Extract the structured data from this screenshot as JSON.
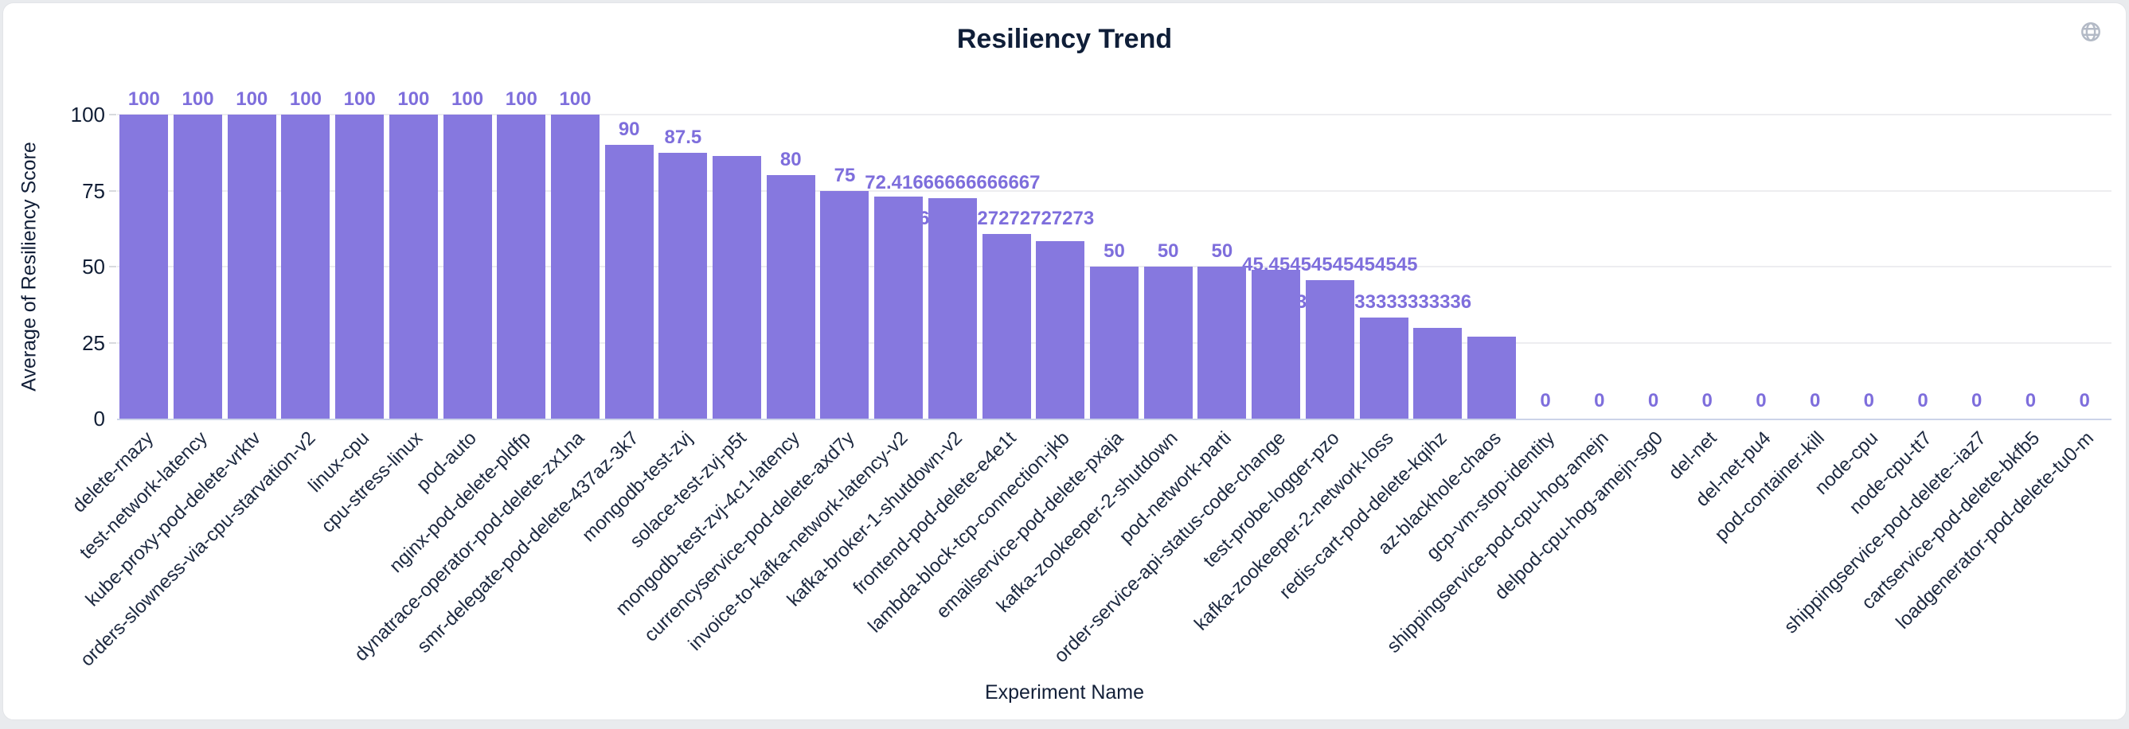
{
  "header": {
    "title": "Resiliency Trend"
  },
  "colors": {
    "bar": "#8678df",
    "value_label": "#7e6edc",
    "axis_text": "#111e35",
    "category_text": "#1d2940",
    "gridline": "#ededf0",
    "axis_line": "#ccd3e8",
    "page_background": "#e9ebee",
    "card_background": "#ffffff",
    "globe_icon": "#b3bac6"
  },
  "icons": {
    "globe": "globe-icon"
  },
  "chart_data": {
    "type": "bar",
    "title": "Resiliency Trend",
    "xlabel": "Experiment Name",
    "ylabel": "Average of Resiliency Score",
    "ylim": [
      0,
      100
    ],
    "ytick_labels": [
      "0",
      "25",
      "50",
      "75",
      "100"
    ],
    "grid": true,
    "legend": "none",
    "categories": [
      "delete-rnazy",
      "test-network-latency",
      "kube-proxy-pod-delete-vrktv",
      "orders-slowness-via-cpu-starvation-v2",
      "linux-cpu",
      "cpu-stress-linux",
      "pod-auto",
      "nginx-pod-delete-pldfp",
      "dynatrace-operator-pod-delete-zx1na",
      "smr-delegate-pod-delete-437az-3k7",
      "mongodb-test-zvj",
      "solace-test-zvj-p5t",
      "mongodb-test-zvj-4c1-latency",
      "currencyservice-pod-delete-axd7y",
      "invoice-to-kafka-network-latency-v2",
      "kafka-broker-1-shutdown-v2",
      "frontend-pod-delete-e4e1t",
      "lambda-block-tcp-connection-jkb",
      "emailservice-pod-delete-pxaja",
      "kafka-zookeeper-2-shutdown",
      "pod-network-parti",
      "order-service-api-status-code-change",
      "test-probe-logger-pzo",
      "kafka-zookeeper-2-network-loss",
      "redis-cart-pod-delete-kqihz",
      "az-blackhole-chaos",
      "gcp-vm-stop-identity",
      "shippingservice-pod-cpu-hog-amejn",
      "delpod-cpu-hog-amejn-sg0",
      "del-net",
      "del-net-pu4",
      "pod-container-kill",
      "node-cpu",
      "node-cpu-tt7",
      "shippingservice-pod-delete--iaz7",
      "cartservice-pod-delete-bkfb5",
      "loadgenerator-pod-delete-tu0-m"
    ],
    "values": [
      100,
      100,
      100,
      100,
      100,
      100,
      100,
      100,
      100,
      90,
      87.5,
      86.4,
      80,
      75,
      73,
      72.41666666666667,
      60.72727272727273,
      58.3,
      50,
      50,
      50,
      49,
      45.45454545454545,
      33.33333333333336,
      29.8,
      27,
      0,
      0,
      0,
      0,
      0,
      0,
      0,
      0,
      0,
      0,
      0
    ],
    "value_labels": [
      "100",
      "100",
      "100",
      "100",
      "100",
      "100",
      "100",
      "100",
      "100",
      "90",
      "87.5",
      null,
      "80",
      "75",
      null,
      "72.41666666666667",
      "60.72727272727273",
      null,
      "50",
      "50",
      "50",
      null,
      "45.45454545454545",
      "33.33333333333336",
      null,
      null,
      "0",
      "0",
      "0",
      "0",
      "0",
      "0",
      "0",
      "0",
      "0",
      "0",
      "0"
    ]
  }
}
